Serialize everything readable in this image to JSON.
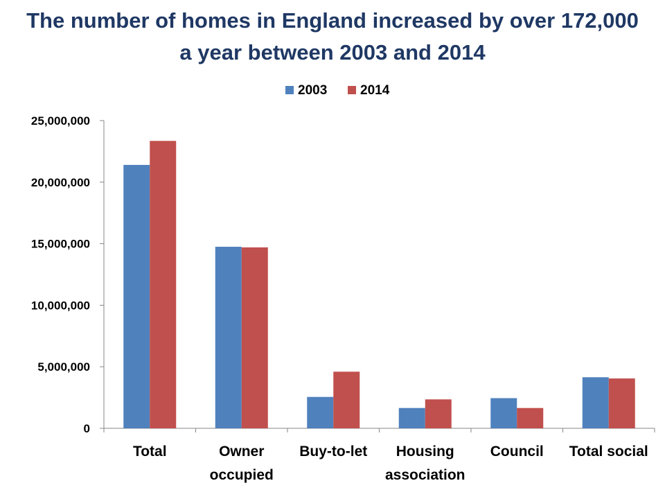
{
  "chart_data": {
    "type": "bar",
    "title_lines": [
      "The number of homes in England increased by over 172,000",
      "a year between 2003 and 2014"
    ],
    "categories": [
      [
        "Total"
      ],
      [
        "Owner",
        "occupied"
      ],
      [
        "Buy-to-let"
      ],
      [
        "Housing",
        "association"
      ],
      [
        "Council"
      ],
      [
        "Total social"
      ]
    ],
    "series": [
      {
        "name": "2003",
        "color": "#4f81bd",
        "values": [
          21400000,
          14750000,
          2550000,
          1650000,
          2450000,
          4150000
        ]
      },
      {
        "name": "2014",
        "color": "#c0504d",
        "values": [
          23350000,
          14700000,
          4600000,
          2350000,
          1650000,
          4050000
        ]
      }
    ],
    "ylim": [
      0,
      25000000
    ],
    "yticks": [
      0,
      5000000,
      10000000,
      15000000,
      20000000,
      25000000
    ],
    "ytick_labels": [
      "0",
      "5,000,000",
      "10,000,000",
      "15,000,000",
      "20,000,000",
      "25,000,000"
    ],
    "legend_position": "top-center",
    "grid": false,
    "xlabel": "",
    "ylabel": ""
  }
}
